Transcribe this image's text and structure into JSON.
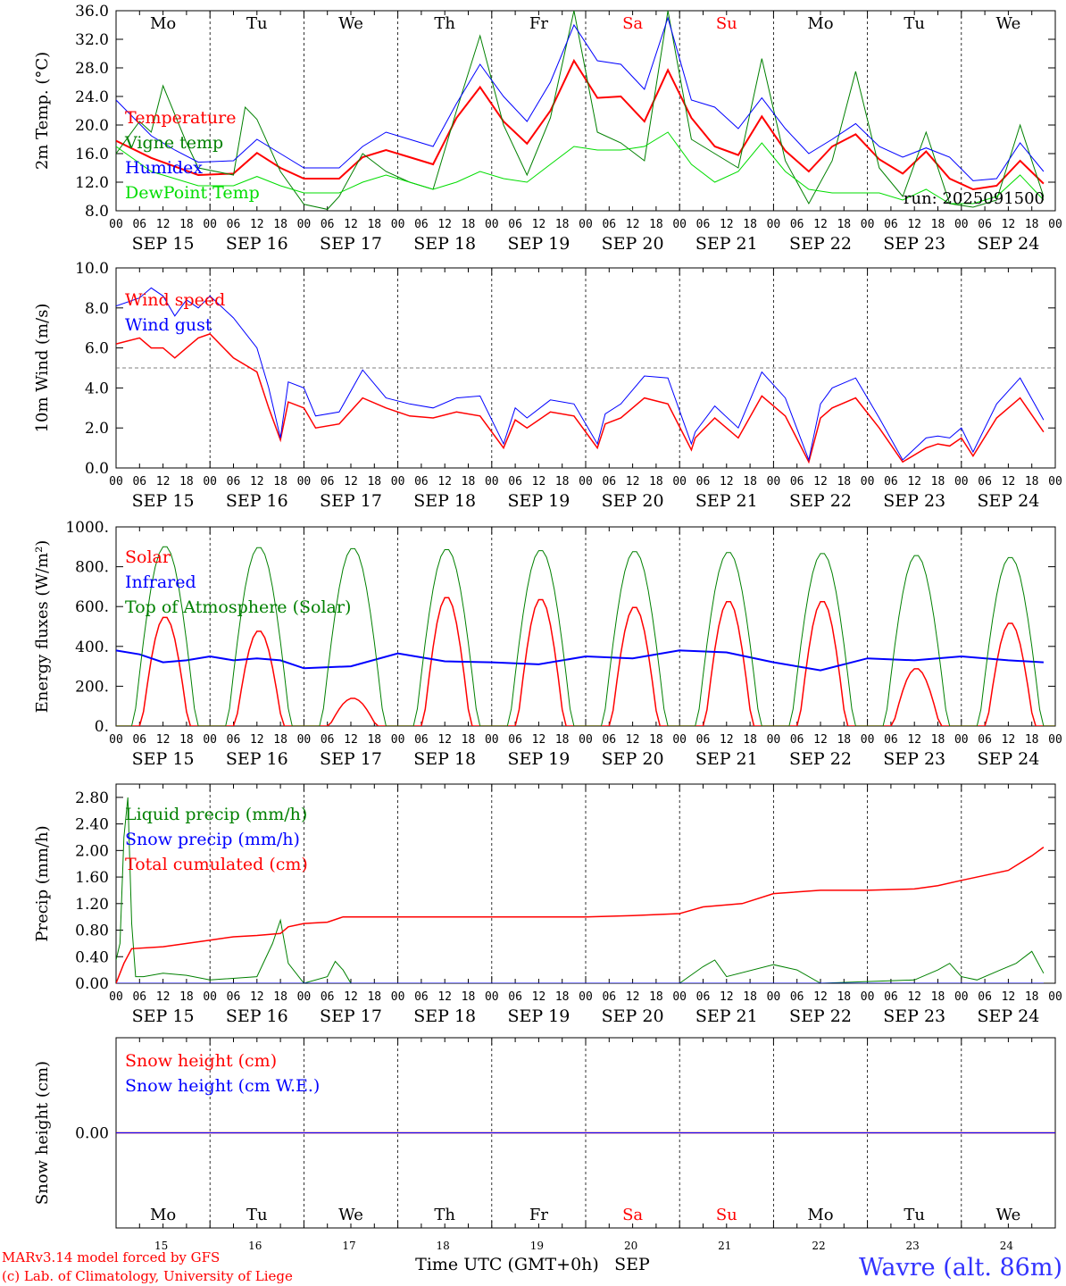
{
  "weekdays_top": [
    {
      "label": "Mo",
      "color": "#000000"
    },
    {
      "label": "Tu",
      "color": "#000000"
    },
    {
      "label": "We",
      "color": "#000000"
    },
    {
      "label": "Th",
      "color": "#000000"
    },
    {
      "label": "Fr",
      "color": "#000000"
    },
    {
      "label": "Sa",
      "color": "#ff0000"
    },
    {
      "label": "Su",
      "color": "#ff0000"
    },
    {
      "label": "Mo",
      "color": "#000000"
    },
    {
      "label": "Tu",
      "color": "#000000"
    },
    {
      "label": "We",
      "color": "#000000"
    }
  ],
  "date_labels": [
    "SEP 15",
    "SEP 16",
    "SEP 17",
    "SEP 18",
    "SEP 19",
    "SEP 20",
    "SEP 21",
    "SEP 22",
    "SEP 23",
    "SEP 24"
  ],
  "hour_ticks": [
    "00",
    "06",
    "12",
    "18"
  ],
  "day_numbers": [
    "15",
    "16",
    "17",
    "18",
    "19",
    "20",
    "21",
    "22",
    "23",
    "24"
  ],
  "run_label": "run: 2025091500",
  "footer": {
    "model": "MARv3.14 model forced by GFS",
    "copyright": "(c) Lab. of Climatology, University of Liege",
    "xlabel": "Time UTC (GMT+0h)",
    "month": "SEP",
    "station": "Wavre (alt. 86m)"
  },
  "chart_data": [
    {
      "type": "line",
      "ylabel": "2m Temp. (°C)",
      "ylim": [
        8,
        36
      ],
      "yticks": [
        "8.0",
        "12.0",
        "16.0",
        "20.0",
        "24.0",
        "28.0",
        "32.0",
        "36.0"
      ],
      "x_unit": "hours since SEP 15 00 UTC",
      "legend_position": "top-left",
      "series": [
        {
          "name": "Temperature",
          "color": "#ff0000",
          "width": 2,
          "x": [
            0,
            9,
            15,
            21,
            30,
            36,
            42,
            48,
            57,
            63,
            69,
            75,
            81,
            87,
            93,
            99,
            105,
            111,
            117,
            123,
            129,
            135,
            141,
            147,
            153,
            159,
            165,
            171,
            177,
            183,
            189,
            195,
            201,
            207,
            213,
            219,
            225,
            231,
            237
          ],
          "y": [
            17.8,
            15.4,
            14.2,
            13.0,
            13.2,
            16.1,
            14.0,
            12.5,
            12.5,
            15.5,
            16.5,
            15.5,
            14.5,
            21.0,
            25.3,
            20.5,
            17.4,
            22.0,
            29.0,
            23.8,
            24.0,
            20.5,
            27.7,
            21.0,
            17.0,
            15.8,
            21.2,
            16.4,
            13.5,
            17.0,
            18.7,
            15.2,
            13.2,
            16.3,
            12.5,
            11.0,
            11.5,
            15.0,
            11.8
          ]
        },
        {
          "name": "Vigne temp",
          "color": "#008000",
          "width": 1,
          "x": [
            0,
            6,
            9,
            12,
            18,
            21,
            30,
            33,
            36,
            42,
            48,
            54,
            57,
            63,
            69,
            75,
            81,
            87,
            93,
            99,
            105,
            111,
            117,
            123,
            129,
            135,
            141,
            147,
            153,
            159,
            165,
            171,
            177,
            183,
            189,
            195,
            201,
            207,
            213,
            219,
            225,
            231,
            237
          ],
          "y": [
            16.0,
            20.5,
            19.0,
            25.5,
            17.5,
            14.0,
            13.0,
            22.5,
            20.8,
            13.5,
            8.9,
            8.2,
            10.0,
            16.0,
            13.5,
            12.0,
            11.0,
            22.0,
            32.5,
            20.0,
            13.0,
            21.0,
            36.0,
            19.0,
            17.5,
            15.0,
            36.0,
            18.0,
            16.0,
            14.0,
            29.3,
            15.0,
            9.0,
            15.0,
            27.5,
            14.0,
            10.0,
            19.0,
            9.0,
            8.5,
            9.5,
            20.0,
            10.0
          ]
        },
        {
          "name": "Humidex",
          "color": "#0000ff",
          "width": 1,
          "x": [
            0,
            9,
            15,
            21,
            30,
            36,
            42,
            48,
            57,
            63,
            69,
            75,
            81,
            87,
            93,
            99,
            105,
            111,
            117,
            123,
            129,
            135,
            141,
            147,
            153,
            159,
            165,
            171,
            177,
            183,
            189,
            195,
            201,
            207,
            213,
            219,
            225,
            231,
            237
          ],
          "y": [
            23.5,
            18.5,
            16.5,
            14.8,
            15.0,
            18.0,
            16.0,
            14.0,
            14.0,
            17.0,
            19.0,
            18.0,
            17.0,
            23.0,
            28.5,
            24.0,
            20.5,
            26.0,
            34.0,
            29.0,
            28.5,
            25.0,
            35.0,
            23.5,
            22.5,
            19.5,
            23.8,
            19.5,
            16.0,
            18.0,
            20.2,
            17.0,
            15.5,
            16.8,
            15.5,
            12.2,
            12.5,
            17.5,
            13.5
          ]
        },
        {
          "name": "DewPoint Temp",
          "color": "#00dd00",
          "width": 1,
          "x": [
            0,
            9,
            15,
            21,
            30,
            36,
            42,
            48,
            57,
            63,
            69,
            75,
            81,
            87,
            93,
            99,
            105,
            111,
            117,
            123,
            129,
            135,
            141,
            147,
            153,
            159,
            165,
            171,
            177,
            183,
            189,
            195,
            201,
            207,
            213,
            219,
            225,
            231,
            237
          ],
          "y": [
            17.0,
            13.5,
            12.5,
            11.5,
            11.5,
            12.8,
            11.5,
            10.5,
            10.5,
            12.0,
            13.0,
            12.0,
            11.0,
            12.0,
            13.5,
            12.5,
            12.0,
            14.5,
            17.0,
            16.5,
            16.5,
            17.0,
            19.0,
            14.5,
            12.0,
            13.5,
            17.5,
            13.5,
            11.0,
            10.5,
            10.5,
            10.5,
            9.5,
            11.0,
            9.0,
            9.0,
            10.0,
            13.0,
            9.5
          ]
        }
      ]
    },
    {
      "type": "line",
      "ylabel": "10m Wind (m/s)",
      "ylim": [
        0,
        10
      ],
      "yticks": [
        "0.0",
        "2.0",
        "4.0",
        "6.0",
        "8.0",
        "10.0"
      ],
      "reference_line": 5.0,
      "legend_position": "top-left",
      "series": [
        {
          "name": "Wind speed",
          "color": "#ff0000",
          "width": 1.5,
          "x": [
            0,
            6,
            9,
            12,
            15,
            18,
            21,
            24,
            30,
            36,
            39,
            42,
            44,
            48,
            51,
            57,
            63,
            69,
            75,
            81,
            87,
            93,
            99,
            102,
            105,
            111,
            117,
            123,
            125,
            129,
            135,
            141,
            147,
            148,
            153,
            159,
            165,
            171,
            177,
            180,
            183,
            189,
            195,
            201,
            207,
            210,
            213,
            216,
            219,
            225,
            231,
            237
          ],
          "y": [
            6.2,
            6.5,
            6.0,
            6.0,
            5.5,
            6.0,
            6.5,
            6.7,
            5.5,
            4.8,
            3.0,
            1.4,
            3.3,
            3.0,
            2.0,
            2.2,
            3.5,
            3.0,
            2.6,
            2.5,
            2.8,
            2.6,
            1.0,
            2.4,
            2.0,
            2.8,
            2.6,
            1.0,
            2.2,
            2.5,
            3.5,
            3.2,
            0.9,
            1.5,
            2.5,
            1.5,
            3.6,
            2.6,
            0.3,
            2.5,
            3.0,
            3.5,
            2.0,
            0.3,
            1.0,
            1.2,
            1.1,
            1.5,
            0.6,
            2.5,
            3.5,
            1.8
          ]
        },
        {
          "name": "Wind gust",
          "color": "#0000ff",
          "width": 1,
          "x": [
            0,
            6,
            9,
            12,
            15,
            18,
            21,
            24,
            30,
            36,
            39,
            42,
            44,
            48,
            51,
            57,
            63,
            69,
            75,
            81,
            87,
            93,
            99,
            102,
            105,
            111,
            117,
            123,
            125,
            129,
            135,
            141,
            147,
            148,
            153,
            159,
            165,
            171,
            177,
            180,
            183,
            189,
            195,
            201,
            207,
            210,
            213,
            216,
            219,
            225,
            231,
            237
          ],
          "y": [
            8.1,
            8.5,
            9.0,
            8.6,
            7.6,
            8.4,
            8.0,
            8.6,
            7.5,
            6.0,
            4.0,
            1.5,
            4.3,
            4.0,
            2.6,
            2.8,
            4.9,
            3.5,
            3.2,
            3.0,
            3.5,
            3.6,
            1.2,
            3.0,
            2.5,
            3.4,
            3.2,
            1.2,
            2.7,
            3.2,
            4.6,
            4.5,
            1.2,
            1.8,
            3.1,
            2.0,
            4.8,
            3.5,
            0.4,
            3.2,
            4.0,
            4.5,
            2.5,
            0.4,
            1.5,
            1.6,
            1.5,
            2.0,
            0.8,
            3.2,
            4.5,
            2.4
          ]
        }
      ]
    },
    {
      "type": "line",
      "ylabel": "Energy fluxes (W/m²)",
      "ylim": [
        0,
        1000
      ],
      "yticks": [
        "0.",
        "200.",
        "400.",
        "600.",
        "800.",
        "1000."
      ],
      "legend_position": "top-left",
      "series": [
        {
          "name": "Solar",
          "color": "#ff0000",
          "width": 1.5,
          "peaks": [
            550,
            480,
            140,
            650,
            640,
            600,
            630,
            630,
            290,
            520
          ]
        },
        {
          "name": "Infrared",
          "color": "#0000ff",
          "width": 2,
          "x": [
            0,
            6,
            12,
            18,
            24,
            30,
            36,
            42,
            48,
            60,
            72,
            84,
            96,
            108,
            120,
            132,
            144,
            156,
            168,
            180,
            192,
            204,
            216,
            228,
            237
          ],
          "y": [
            380,
            360,
            320,
            330,
            350,
            330,
            340,
            330,
            290,
            300,
            365,
            325,
            320,
            310,
            350,
            340,
            380,
            370,
            320,
            280,
            340,
            330,
            350,
            330,
            320
          ]
        },
        {
          "name": "Top of Atmosphere (Solar)",
          "color": "#008000",
          "width": 1,
          "peaks": [
            905,
            900,
            895,
            890,
            885,
            880,
            875,
            870,
            860,
            850
          ]
        }
      ]
    },
    {
      "type": "line",
      "ylabel": "Precip (mm/h)",
      "ylim": [
        0,
        3.0
      ],
      "yticks": [
        "0.00",
        "0.40",
        "0.80",
        "1.20",
        "1.60",
        "2.00",
        "2.40",
        "2.80"
      ],
      "legend_position": "top-left",
      "series": [
        {
          "name": "Liquid precip (mm/h)",
          "color": "#008000",
          "width": 1,
          "x": [
            0,
            1,
            2,
            3,
            4,
            5,
            7,
            12,
            18,
            24,
            36,
            40,
            42,
            44,
            48,
            54,
            56,
            58,
            60,
            96,
            144,
            150,
            153,
            156,
            168,
            174,
            180,
            204,
            210,
            213,
            216,
            220,
            226,
            230,
            234,
            237
          ],
          "y": [
            0.35,
            0.6,
            2.2,
            2.8,
            0.9,
            0.1,
            0.1,
            0.15,
            0.12,
            0.05,
            0.1,
            0.6,
            0.95,
            0.3,
            0.0,
            0.1,
            0.33,
            0.2,
            0.0,
            0.0,
            0.0,
            0.25,
            0.35,
            0.1,
            0.28,
            0.2,
            0.0,
            0.05,
            0.2,
            0.3,
            0.1,
            0.05,
            0.2,
            0.3,
            0.48,
            0.15
          ]
        },
        {
          "name": "Snow precip (mm/h)",
          "color": "#0000ff",
          "width": 1,
          "x": [
            0,
            237
          ],
          "y": [
            0,
            0
          ]
        },
        {
          "name": "Total cumulated (cm)",
          "color": "#ff0000",
          "width": 1.5,
          "x": [
            0,
            2,
            4,
            12,
            24,
            30,
            36,
            42,
            44,
            48,
            54,
            58,
            120,
            132,
            144,
            150,
            160,
            168,
            180,
            192,
            204,
            210,
            216,
            228,
            234,
            237
          ],
          "y": [
            0.0,
            0.3,
            0.52,
            0.55,
            0.65,
            0.7,
            0.72,
            0.75,
            0.85,
            0.9,
            0.92,
            1.0,
            1.0,
            1.02,
            1.05,
            1.15,
            1.2,
            1.35,
            1.4,
            1.4,
            1.42,
            1.47,
            1.55,
            1.7,
            1.92,
            2.05
          ]
        }
      ]
    },
    {
      "type": "line",
      "ylabel": "Snow height (cm)",
      "ylim": [
        -1,
        1
      ],
      "yticks": [
        "0.00"
      ],
      "legend_position": "top-left",
      "series": [
        {
          "name": "Snow height (cm)",
          "color": "#ff0000",
          "width": 1.5,
          "x": [
            0,
            240
          ],
          "y": [
            0,
            0
          ]
        },
        {
          "name": "Snow height (cm W.E.)",
          "color": "#0000ff",
          "width": 1,
          "x": [
            0,
            240
          ],
          "y": [
            0,
            0
          ]
        }
      ]
    }
  ]
}
